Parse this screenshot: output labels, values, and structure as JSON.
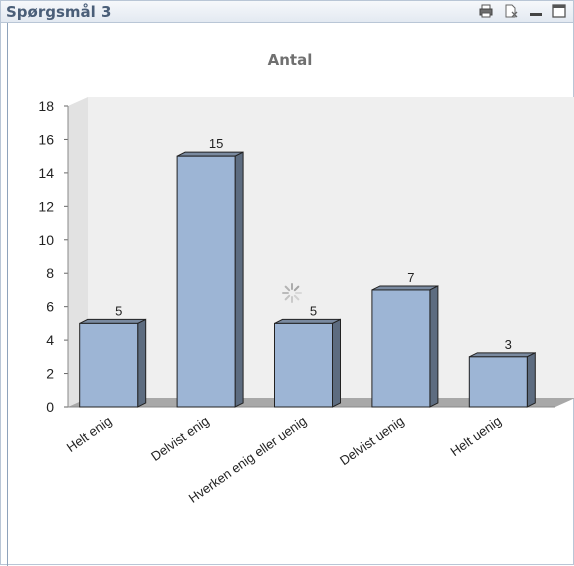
{
  "window": {
    "title": "Spørgsmål 3",
    "icons": [
      "print-icon",
      "clear-selection-icon",
      "minimize-icon",
      "maximize-icon"
    ]
  },
  "colors": {
    "bar": "#9db5d5",
    "bar_side": "#5d6c80",
    "bar_top": "#7a8aa0",
    "wall": "#efefef",
    "floor": "#a8a8a8"
  },
  "chart_data": {
    "type": "bar",
    "title": "Antal",
    "categories": [
      "Helt enig",
      "Delvist enig",
      "Hverken enig eller uenig",
      "Delvist uenig",
      "Helt uenig"
    ],
    "values": [
      5,
      15,
      5,
      7,
      3
    ],
    "ylim": [
      0,
      18
    ],
    "yticks": [
      0,
      2,
      4,
      6,
      8,
      10,
      12,
      14,
      16,
      18
    ],
    "grid": false,
    "style": "3d"
  }
}
